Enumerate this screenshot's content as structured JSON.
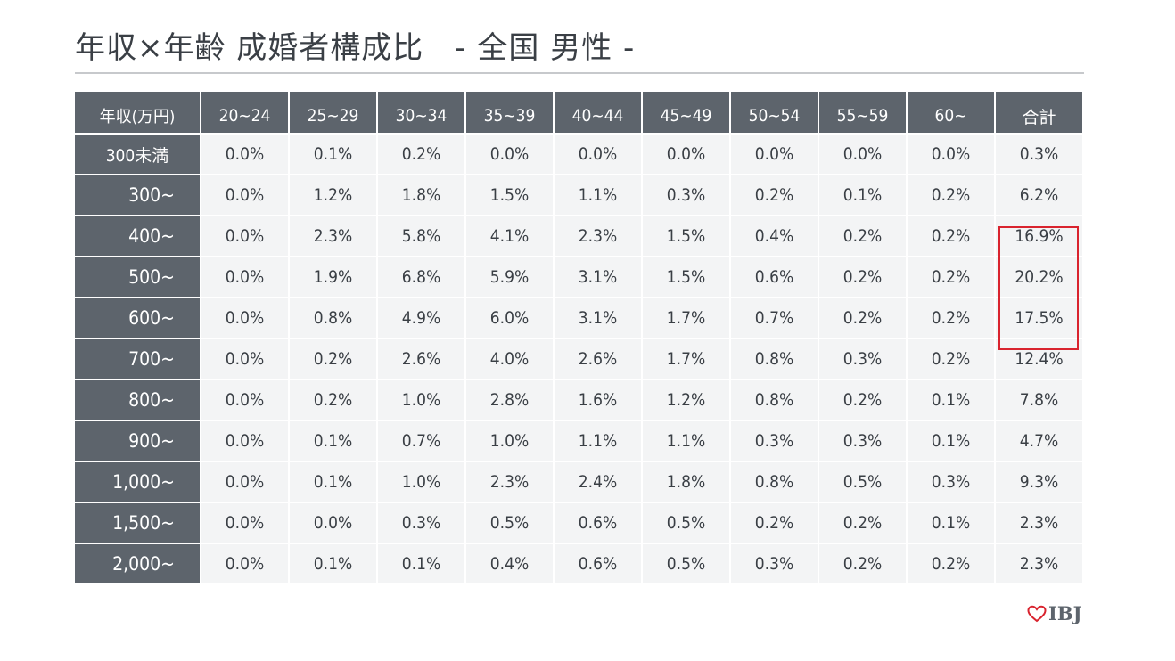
{
  "title": "年収×年齢 成婚者構成比　- 全国 男性 -",
  "logo": {
    "text": "IBJ",
    "icon": "heart-icon",
    "icon_color": "#d9232e"
  },
  "colors": {
    "header_bg": "#5d646c",
    "cell_bg": "#f3f4f5",
    "highlight": "#d9232e"
  },
  "chart_data": {
    "type": "table",
    "title": "年収×年齢 成婚者構成比　- 全国 男性 -",
    "corner_label": "年収(万円)",
    "columns": [
      "20~24",
      "25~29",
      "30~34",
      "35~39",
      "40~44",
      "45~49",
      "50~54",
      "55~59",
      "60~",
      "合計"
    ],
    "rows": [
      {
        "label": "300未満",
        "values": [
          "0.0%",
          "0.1%",
          "0.2%",
          "0.0%",
          "0.0%",
          "0.0%",
          "0.0%",
          "0.0%",
          "0.0%",
          "0.3%"
        ]
      },
      {
        "label": "300~",
        "values": [
          "0.0%",
          "1.2%",
          "1.8%",
          "1.5%",
          "1.1%",
          "0.3%",
          "0.2%",
          "0.1%",
          "0.2%",
          "6.2%"
        ]
      },
      {
        "label": "400~",
        "values": [
          "0.0%",
          "2.3%",
          "5.8%",
          "4.1%",
          "2.3%",
          "1.5%",
          "0.4%",
          "0.2%",
          "0.2%",
          "16.9%"
        ]
      },
      {
        "label": "500~",
        "values": [
          "0.0%",
          "1.9%",
          "6.8%",
          "5.9%",
          "3.1%",
          "1.5%",
          "0.6%",
          "0.2%",
          "0.2%",
          "20.2%"
        ]
      },
      {
        "label": "600~",
        "values": [
          "0.0%",
          "0.8%",
          "4.9%",
          "6.0%",
          "3.1%",
          "1.7%",
          "0.7%",
          "0.2%",
          "0.2%",
          "17.5%"
        ]
      },
      {
        "label": "700~",
        "values": [
          "0.0%",
          "0.2%",
          "2.6%",
          "4.0%",
          "2.6%",
          "1.7%",
          "0.8%",
          "0.3%",
          "0.2%",
          "12.4%"
        ]
      },
      {
        "label": "800~",
        "values": [
          "0.0%",
          "0.2%",
          "1.0%",
          "2.8%",
          "1.6%",
          "1.2%",
          "0.8%",
          "0.2%",
          "0.1%",
          "7.8%"
        ]
      },
      {
        "label": "900~",
        "values": [
          "0.0%",
          "0.1%",
          "0.7%",
          "1.0%",
          "1.1%",
          "1.1%",
          "0.3%",
          "0.3%",
          "0.1%",
          "4.7%"
        ]
      },
      {
        "label": "1,000~",
        "values": [
          "0.0%",
          "0.1%",
          "1.0%",
          "2.3%",
          "2.4%",
          "1.8%",
          "0.8%",
          "0.5%",
          "0.3%",
          "9.3%"
        ]
      },
      {
        "label": "1,500~",
        "values": [
          "0.0%",
          "0.0%",
          "0.3%",
          "0.5%",
          "0.6%",
          "0.5%",
          "0.2%",
          "0.2%",
          "0.1%",
          "2.3%"
        ]
      },
      {
        "label": "2,000~",
        "values": [
          "0.0%",
          "0.1%",
          "0.1%",
          "0.4%",
          "0.6%",
          "0.5%",
          "0.3%",
          "0.2%",
          "0.2%",
          "2.3%"
        ]
      }
    ],
    "highlighted": {
      "column": "合計",
      "rows": [
        "400~",
        "500~",
        "600~"
      ]
    }
  }
}
